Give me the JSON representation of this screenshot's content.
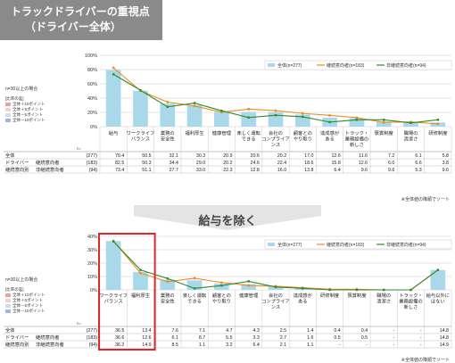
{
  "title_line1": "トラックドライバーの重視点",
  "title_line2": "（ドライバー全体）",
  "separator_label": "給与を除く",
  "colors": {
    "bar": "#a9d8ea",
    "orange": "#f08a24",
    "green": "#2e8b2e",
    "highlight": "#e0252b"
  },
  "chart_data": [
    {
      "type": "bar",
      "ylim": [
        0,
        100
      ],
      "ytick_labels": [
        "0%",
        "20%",
        "40%",
        "60%",
        "80%",
        "100%"
      ],
      "categories": [
        "給与",
        "ワークライフ\nバランス",
        "業務の\n安全性",
        "福利厚生",
        "健康管理",
        "楽しく運転\nできる",
        "会社の\nコンプライア\nンス",
        "顧客との\nやり取り",
        "達成感が\nある",
        "トラック・\n業務設備の\n新しさ",
        "褒賞制度",
        "職場の\n清潔さ",
        "研修制度"
      ],
      "series": [
        {
          "name": "全体(n=277)",
          "values": [
            79.4,
            50.5,
            32.1,
            30.3,
            20.9,
            20.6,
            20.2,
            17.0,
            12.6,
            11.6,
            7.2,
            6.1,
            5.8
          ]
        },
        {
          "name": "継続意向者(n=183)",
          "values": [
            82.5,
            50.3,
            34.4,
            29.0,
            20.2,
            24.6,
            22.4,
            18.6,
            15.8,
            12.6,
            6.0,
            6.6,
            3.8
          ]
        },
        {
          "name": "非継続意向者(n=94)",
          "values": [
            73.4,
            51.1,
            27.7,
            33.0,
            22.3,
            12.8,
            16.0,
            13.8,
            6.4,
            9.6,
            9.6,
            5.3,
            9.6
          ]
        }
      ],
      "table_rows": [
        {
          "group": "全体",
          "label": "",
          "n": "(277)",
          "values": [
            "79.4",
            "50.5",
            "32.1",
            "30.3",
            "20.9",
            "20.6",
            "20.2",
            "17.0",
            "12.6",
            "11.6",
            "7.2",
            "6.1",
            "5.8"
          ]
        },
        {
          "group": "ドライバー",
          "label": "継続意向者",
          "n": "(183)",
          "values": [
            "82.5",
            "50.3",
            "34.4",
            "29.0",
            "20.2",
            "24.6",
            "22.4",
            "18.6",
            "15.8",
            "12.6",
            "6.0",
            "6.6",
            "3.8"
          ]
        },
        {
          "group": "継続意向別",
          "label": "非継続意向者",
          "n": "(94)",
          "values": [
            "73.4",
            "51.1",
            "27.7",
            "33.0",
            "22.3",
            "12.8",
            "16.0",
            "13.8",
            "6.4",
            "9.6",
            "9.6",
            "5.3",
            "9.6"
          ]
        }
      ],
      "n_label": "n=",
      "footnote": "※全体値の降順でソート"
    },
    {
      "type": "bar",
      "ylim": [
        0,
        40
      ],
      "ytick_labels": [
        "0%",
        "10%",
        "20%",
        "30%",
        "40%"
      ],
      "categories": [
        "ワークライフ\nバランス",
        "福利厚生",
        "業務の\n安全性",
        "楽しく運転\nできる",
        "顧客との\nやり取り",
        "健康管理",
        "会社の\nコンプライア\nンス",
        "達成感が\nある",
        "研修制度",
        "褒賞制度",
        "職場の\n清潔さ",
        "トラック・\n業務設備の\n新しさ",
        "給与以外に\nはない"
      ],
      "series": [
        {
          "name": "全体(n=277)",
          "values": [
            36.5,
            13.4,
            7.6,
            7.1,
            4.7,
            4.3,
            2.5,
            1.4,
            0.4,
            0.4,
            0.0,
            0.0,
            14.8
          ]
        },
        {
          "name": "継続意向者(n=183)",
          "values": [
            36.6,
            12.6,
            6.1,
            8.7,
            5.5,
            3.3,
            2.7,
            1.6,
            0.5,
            0.5,
            0.0,
            0.0,
            14.8
          ]
        },
        {
          "name": "非継続意向者(n=94)",
          "values": [
            36.2,
            14.9,
            8.5,
            1.1,
            3.2,
            6.4,
            2.1,
            1.1,
            0.0,
            0.0,
            0.0,
            0.0,
            14.9
          ]
        }
      ],
      "table_rows": [
        {
          "group": "全体",
          "label": "",
          "n": "(277)",
          "values": [
            "36.5",
            "13.4",
            "7.6",
            "7.1",
            "4.7",
            "4.3",
            "2.5",
            "1.4",
            "0.4",
            "0.4",
            "-",
            "-",
            "14.8"
          ]
        },
        {
          "group": "ドライバー",
          "label": "継続意向者",
          "n": "(183)",
          "values": [
            "36.6",
            "12.6",
            "6.1",
            "8.7",
            "5.5",
            "3.3",
            "2.7",
            "1.6",
            "0.5",
            "0.5",
            "-",
            "-",
            "14.8"
          ]
        },
        {
          "group": "継続意向別",
          "label": "非継続意向者",
          "n": "(94)",
          "values": [
            "36.2",
            "14.9",
            "8.5",
            "1.1",
            "3.2",
            "6.4",
            "2.1",
            "1.1",
            "-",
            "-",
            "-",
            "-",
            "14.9"
          ]
        }
      ],
      "n_label": "n=",
      "footnote": "※全体値の降順でソート"
    }
  ],
  "side_note": {
    "line1": "n=30以上の場合",
    "box_title": "[比率の差]",
    "items": [
      "全体＋10ポイント",
      "全体＋5ポイント",
      "全体－5ポイント",
      "全体－10ポイント"
    ]
  }
}
